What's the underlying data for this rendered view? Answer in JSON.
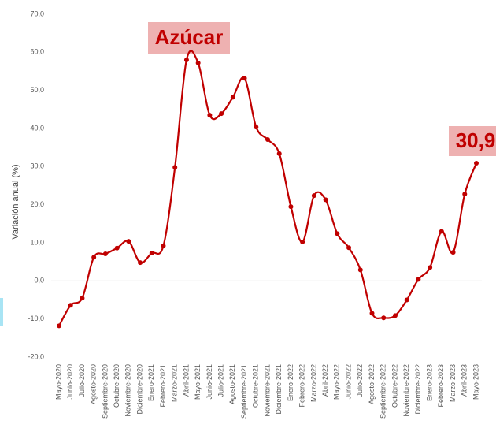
{
  "chart_data": {
    "type": "line",
    "title": "Azúcar",
    "annotation": "30,9",
    "ylabel": "Variación anual (%)",
    "color": "#c00000",
    "categories": [
      "Mayo-2020",
      "Junio-2020",
      "Julio-2020",
      "Agosto-2020",
      "Septiembre-2020",
      "Octubre-2020",
      "Noviembre-2020",
      "Diciembre-2020",
      "Enero-2021",
      "Febrero-2021",
      "Marzo-2021",
      "Abril-2021",
      "Mayo-2021",
      "Junio-2021",
      "Julio-2021",
      "Agosto-2021",
      "Septiembre-2021",
      "Octubre-2021",
      "Noviembre-2021",
      "Diciembre-2021",
      "Enero-2022",
      "Febrero-2022",
      "Marzo-2022",
      "Abril-2022",
      "Mayo-2022",
      "Junio-2022",
      "Julio-2022",
      "Agosto-2022",
      "Septiembre-2022",
      "Octubre-2022",
      "Noviembre-2022",
      "Diciembre-2022",
      "Enero-2023",
      "Febrero-2023",
      "Marzo-2023",
      "Abril-2023",
      "Mayo-2023"
    ],
    "values": [
      -11.8,
      -6.4,
      -4.5,
      6.2,
      7.1,
      8.6,
      10.4,
      4.8,
      7.3,
      9.2,
      29.8,
      58.0,
      57.2,
      43.5,
      43.9,
      48.2,
      53.2,
      40.4,
      37.1,
      33.4,
      19.5,
      10.2,
      22.4,
      21.3,
      12.4,
      8.7,
      2.9,
      -8.5,
      -9.7,
      -9.1,
      -5.0,
      0.4,
      3.5,
      13.0,
      7.5,
      22.8,
      30.9
    ],
    "ylim": [
      -20,
      70
    ],
    "yticks": [
      {
        "value": -20,
        "label": "-20,0"
      },
      {
        "value": -10,
        "label": "-10,0"
      },
      {
        "value": 0,
        "label": "0,0"
      },
      {
        "value": 10,
        "label": "10,0"
      },
      {
        "value": 20,
        "label": "20,0"
      },
      {
        "value": 30,
        "label": "30,0"
      },
      {
        "value": 40,
        "label": "40,0"
      },
      {
        "value": 50,
        "label": "50,0"
      },
      {
        "value": 60,
        "label": "60,0"
      },
      {
        "value": 70,
        "label": "70,0"
      }
    ],
    "grid": false
  }
}
